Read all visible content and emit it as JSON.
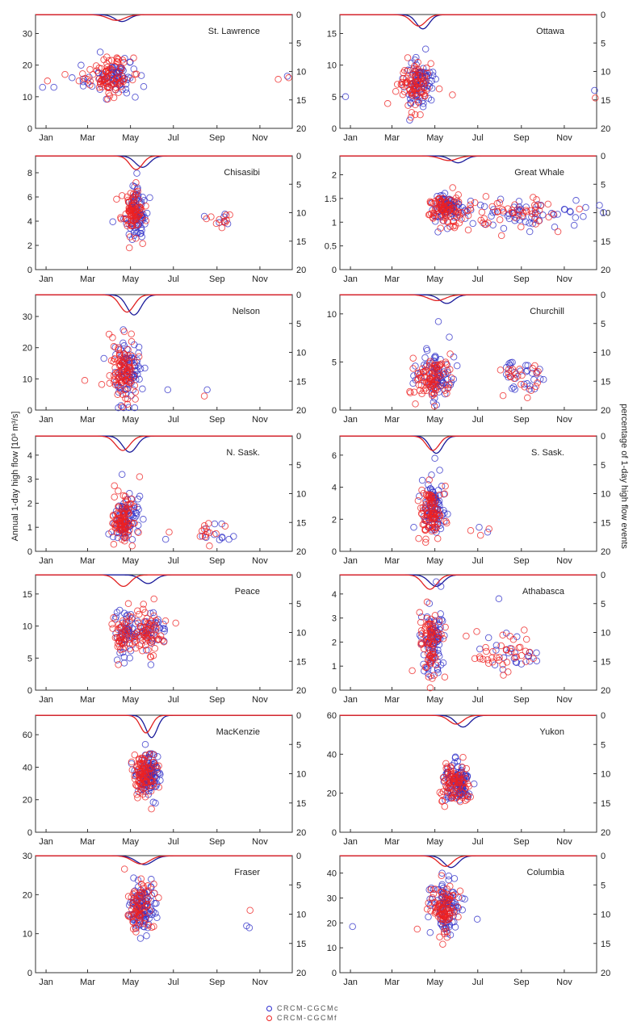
{
  "chart_data": {
    "type": "scatter",
    "ylabel_left": "Annual 1-day high flow [10³ m³/s]",
    "ylabel_right": "percentage of 1-day high flow events",
    "month_ticks": [
      "Jan",
      "Mar",
      "May",
      "Jul",
      "Sep",
      "Nov"
    ],
    "right_ticks": [
      0,
      5,
      10,
      15,
      20
    ],
    "legend": [
      {
        "label": "CRCM-CGCMc",
        "color": "#2b2bd0"
      },
      {
        "label": "CRCM-CGCMf",
        "color": "#ee2020"
      }
    ],
    "panels": [
      {
        "name": "St. Lawrence",
        "ylim": [
          0,
          36
        ],
        "yticks": [
          "0",
          "10",
          "20",
          "30"
        ],
        "clusters": [
          {
            "c": 110,
            "s": 14,
            "y": 16.5,
            "sy": 3,
            "n": 150
          },
          {
            "c": 70,
            "s": 10,
            "y": 15,
            "sy": 1,
            "n": 14
          }
        ],
        "extras": [
          [
            10,
            13
          ],
          [
            17,
            15
          ],
          [
            26,
            13
          ],
          [
            345,
            15.5
          ],
          [
            358,
            16.5
          ],
          [
            360,
            16
          ]
        ],
        "dist_c": {
          "c": 123,
          "w": 10,
          "d": 1.2
        },
        "dist_f": {
          "c": 115,
          "w": 12,
          "d": 1.0
        }
      },
      {
        "name": "Ottawa",
        "ylim": [
          0,
          18
        ],
        "yticks": [
          "0",
          "5",
          "10",
          "15"
        ],
        "clusters": [
          {
            "c": 108,
            "s": 11,
            "y": 7,
            "sy": 2,
            "n": 160
          }
        ],
        "extras": [
          [
            8,
            5
          ],
          [
            160,
            5.3
          ],
          [
            362,
            6
          ],
          [
            363,
            4.8
          ]
        ],
        "dist_c": {
          "c": 118,
          "w": 9,
          "d": 2.5
        },
        "dist_f": {
          "c": 112,
          "w": 10,
          "d": 2.0
        }
      },
      {
        "name": "Chisasibi",
        "ylim": [
          0,
          9.4
        ],
        "yticks": [
          "0",
          "2",
          "4",
          "6",
          "8"
        ],
        "clusters": [
          {
            "c": 140,
            "s": 8,
            "y": 4.8,
            "sy": 1,
            "n": 160
          },
          {
            "c": 262,
            "s": 10,
            "y": 3.9,
            "sy": 0.4,
            "n": 14
          }
        ],
        "extras": [
          [
            240,
            4.4
          ],
          [
            243,
            4.2
          ]
        ],
        "dist_c": {
          "c": 152,
          "w": 10,
          "d": 2.0
        },
        "dist_f": {
          "c": 143,
          "w": 9,
          "d": 2.4
        }
      },
      {
        "name": "Great Whale",
        "ylim": [
          0,
          2.4
        ],
        "yticks": [
          "0",
          "0.5",
          "1",
          "1.5",
          "2"
        ],
        "clusters": [
          {
            "c": 150,
            "s": 12,
            "y": 1.3,
            "sy": 0.15,
            "n": 150
          },
          {
            "c": 250,
            "s": 50,
            "y": 1.2,
            "sy": 0.15,
            "n": 120
          }
        ],
        "extras": [
          [
            270,
            0.8
          ],
          [
            310,
            0.8
          ]
        ],
        "dist_c": {
          "c": 168,
          "w": 10,
          "d": 1.2
        },
        "dist_f": {
          "c": 155,
          "w": 12,
          "d": 0.8
        }
      },
      {
        "name": "Nelson",
        "ylim": [
          0,
          37
        ],
        "yticks": [
          "0",
          "10",
          "20",
          "30"
        ],
        "clusters": [
          {
            "c": 128,
            "s": 10,
            "y": 12,
            "sy": 5,
            "n": 180
          }
        ],
        "extras": [
          [
            188,
            6.5
          ],
          [
            240,
            4.5
          ],
          [
            244,
            6.5
          ],
          [
            70,
            9.5
          ]
        ],
        "dist_c": {
          "c": 140,
          "w": 10,
          "d": 3.5
        },
        "dist_f": {
          "c": 130,
          "w": 10,
          "d": 3.0
        }
      },
      {
        "name": "Churchill",
        "ylim": [
          0,
          12
        ],
        "yticks": [
          "0",
          "5",
          "10"
        ],
        "clusters": [
          {
            "c": 135,
            "s": 13,
            "y": 3.5,
            "sy": 1.2,
            "n": 160
          },
          {
            "c": 262,
            "s": 16,
            "y": 3.4,
            "sy": 0.8,
            "n": 50
          }
        ],
        "extras": [
          [
            140,
            9.2
          ],
          [
            232,
            1.5
          ]
        ],
        "dist_c": {
          "c": 152,
          "w": 10,
          "d": 1.5
        },
        "dist_f": {
          "c": 138,
          "w": 12,
          "d": 1.0
        }
      },
      {
        "name": "N. Sask.",
        "ylim": [
          0,
          4.8
        ],
        "yticks": [
          "0",
          "1",
          "2",
          "3",
          "4"
        ],
        "clusters": [
          {
            "c": 126,
            "s": 8,
            "y": 1.3,
            "sy": 0.5,
            "n": 170
          },
          {
            "c": 255,
            "s": 12,
            "y": 0.7,
            "sy": 0.25,
            "n": 22
          }
        ],
        "extras": [
          [
            123,
            3.2
          ],
          [
            148,
            3.1
          ],
          [
            185,
            0.5
          ],
          [
            190,
            0.8
          ],
          [
            275,
            0.5
          ]
        ],
        "dist_c": {
          "c": 134,
          "w": 10,
          "d": 2.8
        },
        "dist_f": {
          "c": 124,
          "w": 10,
          "d": 2.5
        }
      },
      {
        "name": "S. Sask.",
        "ylim": [
          0,
          7.2
        ],
        "yticks": [
          "0",
          "2",
          "4",
          "6"
        ],
        "clusters": [
          {
            "c": 132,
            "s": 8,
            "y": 2.5,
            "sy": 0.9,
            "n": 170
          }
        ],
        "extras": [
          [
            105,
            1.5
          ],
          [
            112,
            0.8
          ],
          [
            135,
            5.8
          ],
          [
            186,
            1.3
          ],
          [
            198,
            1.5
          ],
          [
            200,
            1.0
          ],
          [
            210,
            1.2
          ],
          [
            212,
            1.4
          ]
        ],
        "dist_c": {
          "c": 137,
          "w": 9,
          "d": 3.0
        },
        "dist_f": {
          "c": 132,
          "w": 9,
          "d": 2.5
        }
      },
      {
        "name": "Peace",
        "ylim": [
          0,
          18
        ],
        "yticks": [
          "0",
          "5",
          "10",
          "15"
        ],
        "clusters": [
          {
            "c": 125,
            "s": 7,
            "y": 9,
            "sy": 1.8,
            "n": 90
          },
          {
            "c": 160,
            "s": 11,
            "y": 9,
            "sy": 1.8,
            "n": 110
          }
        ],
        "extras": [
          [
            120,
            5.8
          ],
          [
            132,
            13.5
          ]
        ],
        "dist_c": {
          "c": 160,
          "w": 10,
          "d": 1.5
        },
        "dist_f": {
          "c": 125,
          "w": 10,
          "d": 2.0
        }
      },
      {
        "name": "Athabasca",
        "ylim": [
          0,
          4.8
        ],
        "yticks": [
          "0",
          "1",
          "2",
          "3",
          "4"
        ],
        "clusters": [
          {
            "c": 132,
            "s": 8,
            "y": 2.0,
            "sy": 0.7,
            "n": 160
          },
          {
            "c": 235,
            "s": 25,
            "y": 1.5,
            "sy": 0.4,
            "n": 60
          }
        ],
        "extras": [
          [
            226,
            3.8
          ],
          [
            262,
            2.5
          ],
          [
            270,
            1.2
          ]
        ],
        "dist_c": {
          "c": 137,
          "w": 10,
          "d": 2.0
        },
        "dist_f": {
          "c": 128,
          "w": 10,
          "d": 2.5
        }
      },
      {
        "name": "MacKenzie",
        "ylim": [
          0,
          72
        ],
        "yticks": [
          "0",
          "20",
          "40",
          "60"
        ],
        "clusters": [
          {
            "c": 158,
            "s": 8,
            "y": 36,
            "sy": 7,
            "n": 200
          }
        ],
        "extras": [],
        "dist_c": {
          "c": 165,
          "w": 8,
          "d": 3.8
        },
        "dist_f": {
          "c": 157,
          "w": 8,
          "d": 3.0
        }
      },
      {
        "name": "Yukon",
        "ylim": [
          0,
          60
        ],
        "yticks": [
          "0",
          "20",
          "40",
          "60"
        ],
        "clusters": [
          {
            "c": 165,
            "s": 10,
            "y": 25,
            "sy": 5,
            "n": 180
          }
        ],
        "extras": [],
        "dist_c": {
          "c": 175,
          "w": 10,
          "d": 2.0
        },
        "dist_f": {
          "c": 165,
          "w": 10,
          "d": 1.5
        }
      },
      {
        "name": "Fraser",
        "ylim": [
          0,
          30
        ],
        "yticks": [
          "0",
          "10",
          "20",
          "30"
        ],
        "clusters": [
          {
            "c": 150,
            "s": 9,
            "y": 17,
            "sy": 3,
            "n": 170
          }
        ],
        "extras": [
          [
            300,
            12
          ],
          [
            305,
            16
          ],
          [
            304,
            11.5
          ]
        ],
        "dist_c": {
          "c": 155,
          "w": 12,
          "d": 1.5
        },
        "dist_f": {
          "c": 150,
          "w": 12,
          "d": 1.4
        }
      },
      {
        "name": "Columbia",
        "ylim": [
          0,
          47
        ],
        "yticks": [
          "0",
          "10",
          "20",
          "30",
          "40"
        ],
        "clusters": [
          {
            "c": 150,
            "s": 10,
            "y": 26,
            "sy": 5,
            "n": 180
          }
        ],
        "extras": [
          [
            18,
            18.5
          ],
          [
            110,
            17.5
          ]
        ],
        "dist_c": {
          "c": 158,
          "w": 10,
          "d": 2.0
        },
        "dist_f": {
          "c": 150,
          "w": 10,
          "d": 1.8
        }
      }
    ]
  }
}
